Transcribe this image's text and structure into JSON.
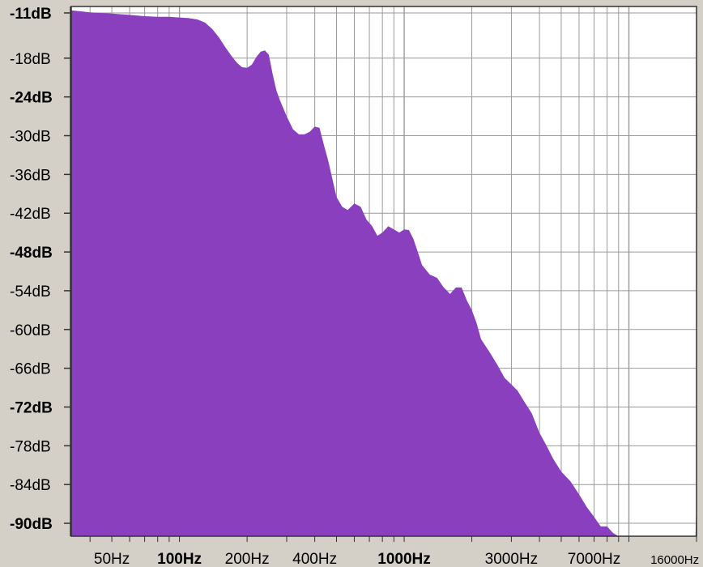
{
  "chart_data": {
    "type": "area",
    "title": "",
    "xlabel": "",
    "ylabel": "",
    "x_scale": "log",
    "xlim": [
      33,
      20000
    ],
    "ylim": [
      -92,
      -10
    ],
    "grid": true,
    "colors": {
      "fill": "#8a3fbf",
      "plot_bg": "#ffffff",
      "grid": "#9a9a9a",
      "panel": "#d4d0c8"
    },
    "y_ticks": [
      {
        "value": -11,
        "label": "-11dB",
        "bold": true
      },
      {
        "value": -18,
        "label": "-18dB",
        "bold": false
      },
      {
        "value": -24,
        "label": "-24dB",
        "bold": true
      },
      {
        "value": -30,
        "label": "-30dB",
        "bold": false
      },
      {
        "value": -36,
        "label": "-36dB",
        "bold": false
      },
      {
        "value": -42,
        "label": "-42dB",
        "bold": false
      },
      {
        "value": -48,
        "label": "-48dB",
        "bold": true
      },
      {
        "value": -54,
        "label": "-54dB",
        "bold": false
      },
      {
        "value": -60,
        "label": "-60dB",
        "bold": false
      },
      {
        "value": -66,
        "label": "-66dB",
        "bold": false
      },
      {
        "value": -72,
        "label": "-72dB",
        "bold": true
      },
      {
        "value": -78,
        "label": "-78dB",
        "bold": false
      },
      {
        "value": -84,
        "label": "-84dB",
        "bold": false
      },
      {
        "value": -90,
        "label": "-90dB",
        "bold": true
      }
    ],
    "x_ticks": [
      {
        "value": 50,
        "label": "50Hz",
        "bold": false,
        "small": false
      },
      {
        "value": 100,
        "label": "100Hz",
        "bold": true,
        "small": false
      },
      {
        "value": 200,
        "label": "200Hz",
        "bold": false,
        "small": false
      },
      {
        "value": 400,
        "label": "400Hz",
        "bold": false,
        "small": false
      },
      {
        "value": 1000,
        "label": "1000Hz",
        "bold": true,
        "small": false
      },
      {
        "value": 3000,
        "label": "3000Hz",
        "bold": false,
        "small": false
      },
      {
        "value": 7000,
        "label": "7000Hz",
        "bold": false,
        "small": false
      },
      {
        "value": 16000,
        "label": "16000Hz",
        "bold": false,
        "small": true
      }
    ],
    "grid_lines_hz": [
      40,
      50,
      60,
      70,
      80,
      90,
      100,
      200,
      300,
      400,
      500,
      600,
      700,
      800,
      900,
      1000,
      2000,
      3000,
      4000,
      5000,
      6000,
      7000,
      8000,
      9000,
      10000,
      20000
    ],
    "series": [
      {
        "values_note_skip": true,
        "x": [
          33,
          40,
          50,
          60,
          70,
          80,
          90,
          100,
          110,
          120,
          130,
          140,
          150,
          160,
          170,
          180,
          190,
          200,
          210,
          220,
          230,
          240,
          250,
          260,
          270,
          280,
          300,
          320,
          340,
          360,
          380,
          400,
          420,
          440,
          460,
          480,
          500,
          530,
          560,
          600,
          640,
          680,
          720,
          760,
          800,
          850,
          900,
          950,
          1000,
          1050,
          1100,
          1150,
          1200,
          1300,
          1400,
          1500,
          1600,
          1700,
          1800,
          1900,
          2000,
          2100,
          2200,
          2400,
          2600,
          2800,
          3000,
          3200,
          3400,
          3700,
          4000,
          4300,
          4600,
          5000,
          5500,
          6000,
          6500,
          7000,
          7500,
          8000,
          8500,
          9000,
          9500,
          10000,
          11000,
          12000,
          13000,
          14000,
          15000,
          16000,
          17000,
          18000,
          19000,
          19800,
          20000
        ],
        "values": [
          -10.6,
          -10.9,
          -11.1,
          -11.3,
          -11.5,
          -11.6,
          -11.6,
          -11.7,
          -11.8,
          -12.0,
          -12.5,
          -13.5,
          -14.8,
          -16.3,
          -17.6,
          -18.7,
          -19.4,
          -19.5,
          -19.0,
          -17.8,
          -17.0,
          -16.8,
          -17.5,
          -20.5,
          -23.0,
          -24.5,
          -27.0,
          -29.0,
          -29.8,
          -29.8,
          -29.4,
          -28.6,
          -28.8,
          -31.5,
          -34.0,
          -36.8,
          -39.5,
          -41.0,
          -41.5,
          -40.5,
          -41.0,
          -43.0,
          -44.0,
          -45.5,
          -45.0,
          -44.0,
          -44.5,
          -45.0,
          -44.5,
          -44.6,
          -46.0,
          -48.0,
          -50.0,
          -51.5,
          -52.0,
          -53.5,
          -54.5,
          -53.5,
          -53.5,
          -55.5,
          -57.0,
          -59.0,
          -61.5,
          -63.5,
          -65.5,
          -67.5,
          -68.5,
          -69.5,
          -71.0,
          -73.0,
          -76.0,
          -78.0,
          -80.0,
          -82.0,
          -83.5,
          -85.5,
          -87.5,
          -89.0,
          -90.5,
          -90.5,
          -91.5,
          -92.0,
          -92.0,
          -92.0,
          -92.0,
          -92.0,
          -92.0,
          -92.0,
          -92.0,
          -92.0,
          -92.0,
          -92.0,
          -92.0,
          -92.0,
          -86.0
        ]
      }
    ]
  }
}
